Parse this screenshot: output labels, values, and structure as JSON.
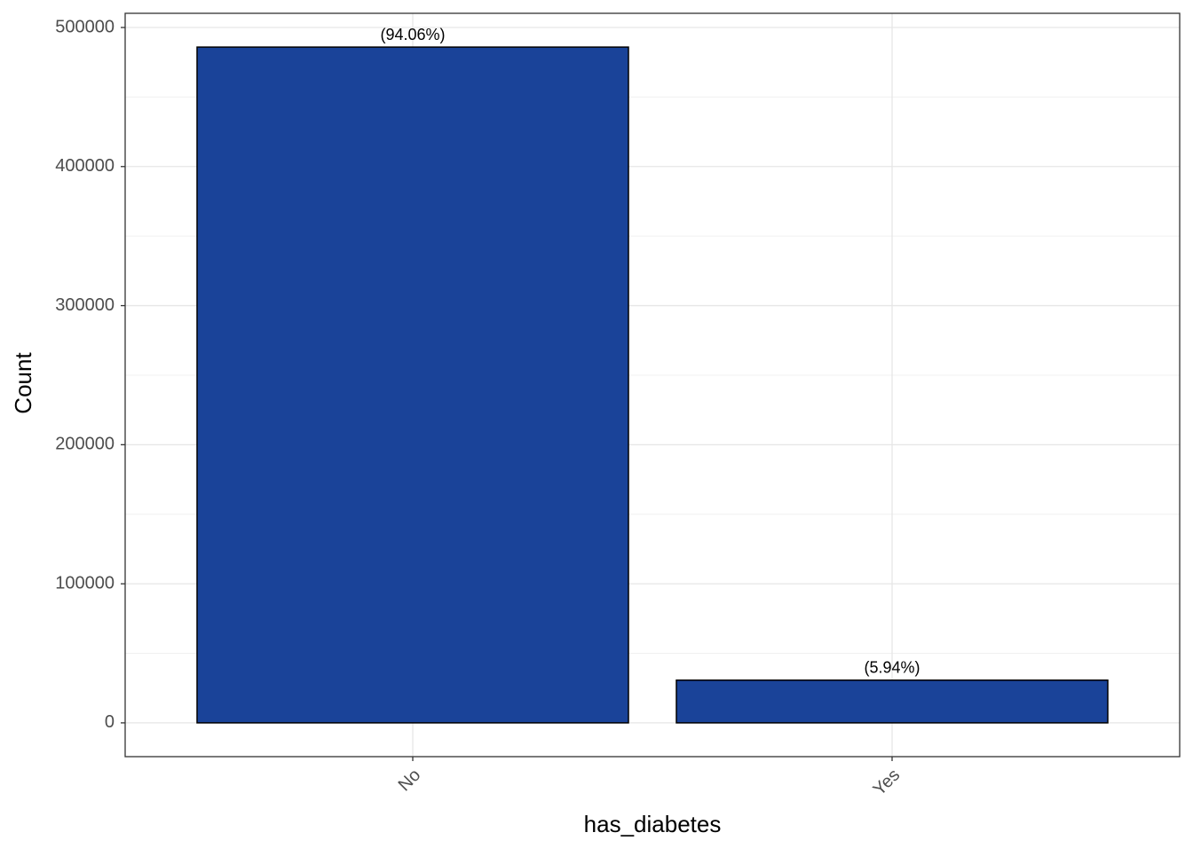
{
  "chart_data": {
    "type": "bar",
    "x_label": "has_diabetes",
    "y_label": "Count",
    "categories": [
      "No",
      "Yes"
    ],
    "values": [
      485900,
      30700
    ],
    "annotations": [
      "(94.06%)",
      "(5.94%)"
    ],
    "color": "#1a4399",
    "ylim": [
      -24295,
      510195
    ],
    "yticks": [
      0,
      100000,
      200000,
      300000,
      400000,
      500000
    ],
    "y_minor_ticks": [
      50000,
      150000,
      250000,
      350000,
      450000
    ],
    "grid": true
  }
}
